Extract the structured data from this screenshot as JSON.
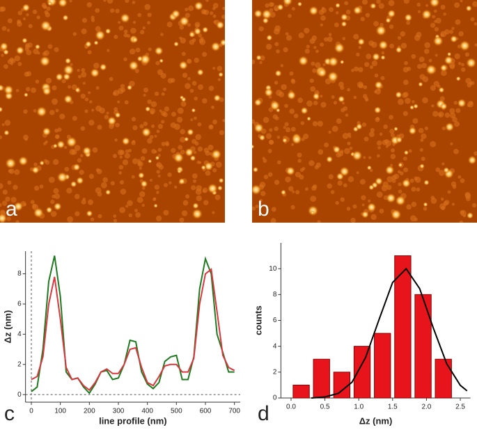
{
  "images": [
    {
      "label": "a"
    },
    {
      "label": "b"
    }
  ],
  "chart_data": [
    {
      "type": "line",
      "panel": "c",
      "xlabel": "line profile (nm)",
      "ylabel": "Δz (nm)",
      "x": [
        0,
        20,
        40,
        60,
        80,
        100,
        120,
        140,
        160,
        180,
        200,
        220,
        240,
        260,
        280,
        300,
        320,
        340,
        360,
        380,
        400,
        420,
        440,
        460,
        480,
        500,
        520,
        540,
        560,
        580,
        600,
        620,
        640,
        660,
        680,
        700
      ],
      "series": [
        {
          "color": "#1e7a1e",
          "values": [
            0.2,
            0.5,
            3,
            7.5,
            9.2,
            6.5,
            1.5,
            1.0,
            1.1,
            0.5,
            0.1,
            0.7,
            1.5,
            1.6,
            1.0,
            1.1,
            2.0,
            3.6,
            3.5,
            1.5,
            0.7,
            0.4,
            0.8,
            2.2,
            2.5,
            2.6,
            1.0,
            1.0,
            2.5,
            7.0,
            9.0,
            8.0,
            4.0,
            2.8,
            1.5,
            1.5
          ]
        },
        {
          "color": "#d9363e",
          "values": [
            1.0,
            1.2,
            2.5,
            6.0,
            7.8,
            5.0,
            1.8,
            1.0,
            1.1,
            0.6,
            0.3,
            0.8,
            1.5,
            1.7,
            1.4,
            1.4,
            2.0,
            3.0,
            3.1,
            1.8,
            0.8,
            0.6,
            1.2,
            1.9,
            2.0,
            2.0,
            1.5,
            1.5,
            2.4,
            6.0,
            8.0,
            8.3,
            5.5,
            2.6,
            1.8,
            1.6
          ]
        }
      ],
      "xlim": [
        -20,
        720
      ],
      "xticks": [
        0,
        100,
        200,
        300,
        400,
        500,
        600,
        700
      ],
      "ylim": [
        -0.5,
        9.5
      ],
      "yticks": [
        0,
        2,
        4,
        6,
        8
      ]
    },
    {
      "type": "histogram",
      "panel": "d",
      "xlabel": "Δz (nm)",
      "ylabel": "counts",
      "bins": [
        0,
        0.3,
        0.6,
        0.9,
        1.2,
        1.5,
        1.8,
        2.1,
        2.4
      ],
      "values": [
        1,
        3,
        2,
        4,
        5,
        11,
        8,
        3
      ],
      "color": "#e8141c",
      "fit": {
        "color": "#000000",
        "x": [
          0.3,
          0.5,
          0.7,
          0.9,
          1.1,
          1.3,
          1.5,
          1.7,
          1.9,
          2.1,
          2.3,
          2.5,
          2.6
        ],
        "values": [
          0,
          0.08,
          0.36,
          1.22,
          3.12,
          6.07,
          8.94,
          10.0,
          8.46,
          5.43,
          2.64,
          0.98,
          0.55
        ]
      },
      "xlim": [
        -0.15,
        2.65
      ],
      "xticks": [
        {
          "value": 0,
          "label": "0.0"
        },
        0.5,
        {
          "value": 1,
          "label": "1.0"
        },
        1.5,
        {
          "value": 2,
          "label": "2.0"
        },
        2.5
      ],
      "ylim": [
        0,
        12
      ],
      "yticks": [
        0,
        2,
        4,
        6,
        8,
        10
      ]
    }
  ]
}
